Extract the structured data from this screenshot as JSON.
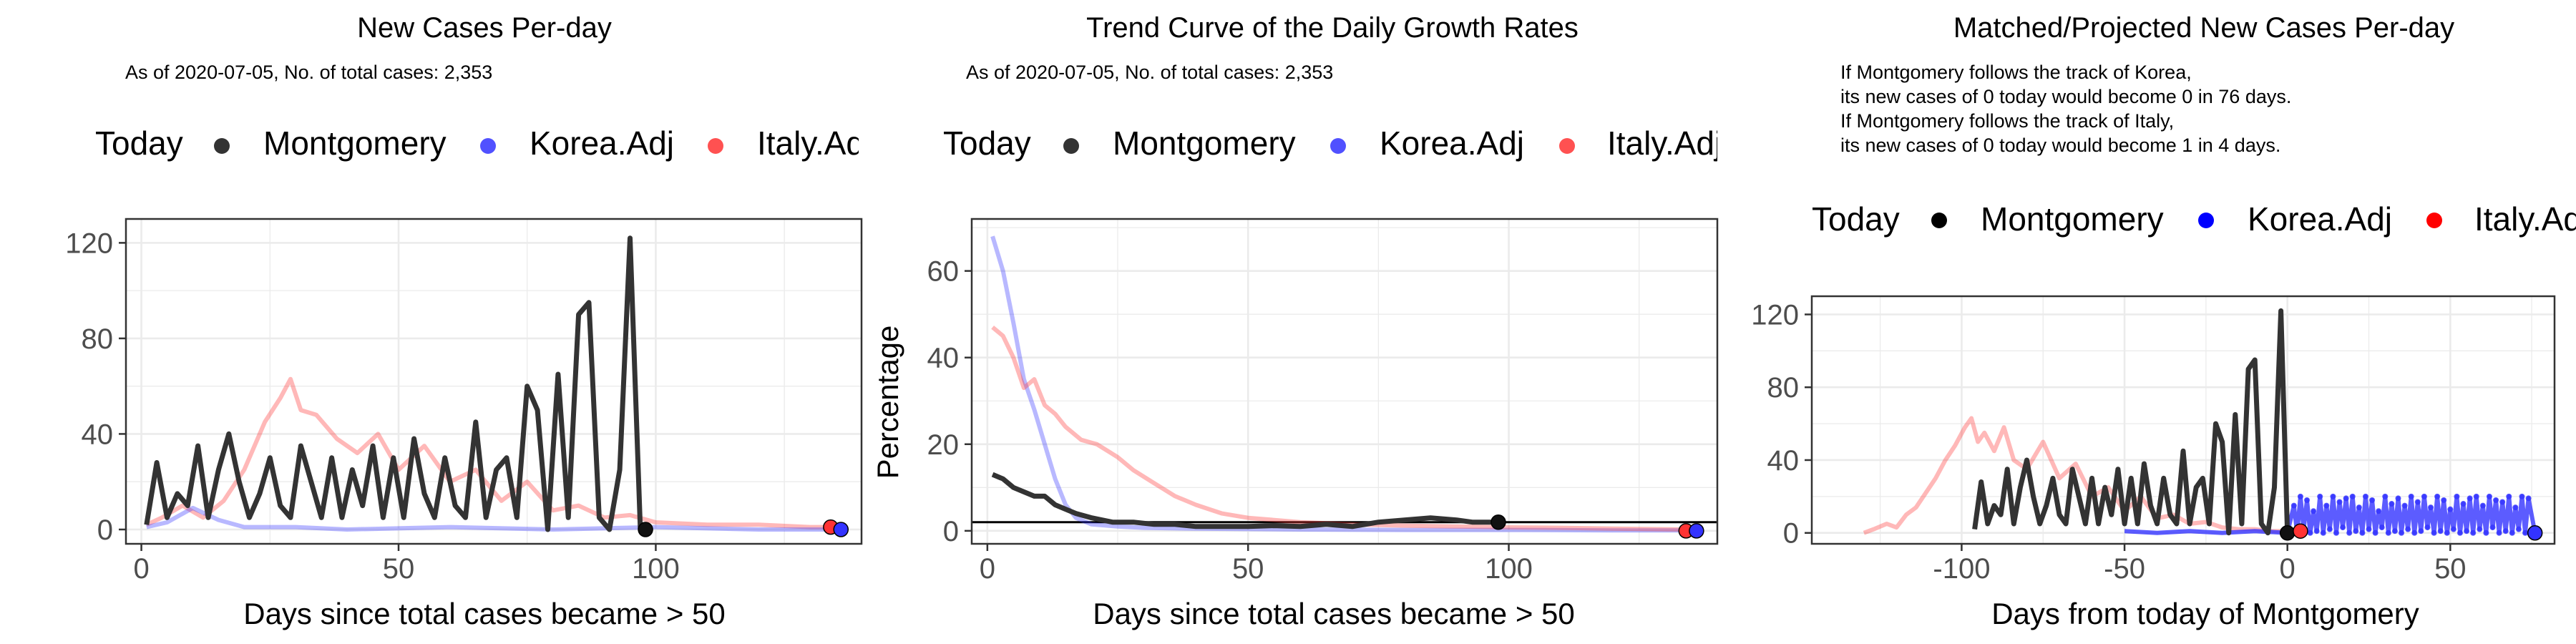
{
  "colors": {
    "montgomery": "#333333",
    "korea": "#3333ff",
    "italy": "#ff3333",
    "grid": "#ebebeb",
    "panel_border": "#333333",
    "axis_text": "#4d4d4d"
  },
  "legend": {
    "title": "Today",
    "items": [
      "Montgomery",
      "Korea.Adj",
      "Italy.Adj"
    ]
  },
  "panels": [
    {
      "title": "New Cases Per-day",
      "subtitle": "As of 2020-07-05, No. of total cases: 2,353",
      "notes": [],
      "xlabel": "Days since total cases became > 50",
      "ylabel": ""
    },
    {
      "title": "Trend Curve of the Daily Growth Rates",
      "subtitle": "As of 2020-07-05, No. of total cases: 2,353",
      "notes": [],
      "xlabel": "Days since total cases became > 50",
      "ylabel": "Percentage"
    },
    {
      "title": "Matched/Projected New Cases Per-day",
      "subtitle": "",
      "notes": [
        "If Montgomery follows the track of Korea,",
        "its new cases of 0 today would become 0 in 76 days.",
        "If Montgomery follows the track of Italy,",
        "its new cases of 0 today would become 1 in 4 days."
      ],
      "xlabel": "Days from today of Montgomery",
      "ylabel": ""
    }
  ],
  "chart_data": [
    {
      "type": "line",
      "title": "New Cases Per-day",
      "xlabel": "Days since total cases became > 50",
      "ylabel": "",
      "xlim": [
        -3,
        140
      ],
      "ylim": [
        -6,
        130
      ],
      "xticks": [
        0,
        50,
        100
      ],
      "yticks": [
        0,
        40,
        80,
        120
      ],
      "grid": true,
      "series": [
        {
          "name": "Italy.Adj",
          "x": [
            1,
            4,
            8,
            12,
            16,
            20,
            24,
            27,
            29,
            31,
            34,
            38,
            42,
            46,
            50,
            55,
            60,
            65,
            70,
            75,
            80,
            85,
            90,
            95,
            100,
            110,
            120,
            130,
            134
          ],
          "y": [
            2,
            5,
            10,
            5,
            12,
            25,
            45,
            55,
            63,
            50,
            48,
            38,
            32,
            40,
            25,
            35,
            20,
            25,
            12,
            20,
            8,
            10,
            5,
            6,
            3,
            2,
            2,
            1,
            1
          ]
        },
        {
          "name": "Korea.Adj",
          "x": [
            1,
            5,
            10,
            15,
            20,
            30,
            40,
            60,
            80,
            100,
            120,
            136
          ],
          "y": [
            1,
            3,
            9,
            4,
            1,
            1,
            0,
            1,
            0,
            1,
            0,
            0
          ]
        },
        {
          "name": "Montgomery",
          "x": [
            1,
            3,
            5,
            7,
            9,
            11,
            13,
            15,
            17,
            19,
            21,
            23,
            25,
            27,
            29,
            31,
            33,
            35,
            37,
            39,
            41,
            43,
            45,
            47,
            49,
            51,
            53,
            55,
            57,
            59,
            61,
            63,
            65,
            67,
            69,
            71,
            73,
            75,
            77,
            79,
            81,
            83,
            85,
            87,
            89,
            91,
            93,
            95,
            97
          ],
          "y": [
            2,
            28,
            5,
            15,
            10,
            35,
            5,
            25,
            40,
            20,
            5,
            15,
            30,
            10,
            5,
            35,
            20,
            5,
            30,
            5,
            25,
            10,
            35,
            5,
            30,
            5,
            38,
            15,
            5,
            30,
            10,
            5,
            45,
            5,
            25,
            30,
            5,
            60,
            50,
            0,
            65,
            5,
            90,
            95,
            5,
            0,
            25,
            122,
            0
          ]
        }
      ],
      "today_markers": [
        {
          "name": "Montgomery",
          "x": 98,
          "y": 0
        },
        {
          "name": "Italy.Adj",
          "x": 134,
          "y": 1
        },
        {
          "name": "Korea.Adj",
          "x": 136,
          "y": 0
        }
      ]
    },
    {
      "type": "line",
      "title": "Trend Curve of the Daily Growth Rates",
      "xlabel": "Days since total cases became > 50",
      "ylabel": "Percentage",
      "xlim": [
        -3,
        140
      ],
      "ylim": [
        -3,
        72
      ],
      "xticks": [
        0,
        50,
        100
      ],
      "yticks": [
        0,
        20,
        40,
        60
      ],
      "grid": true,
      "reference_line_y": 2,
      "series": [
        {
          "name": "Korea.Adj",
          "x": [
            1,
            3,
            5,
            7,
            9,
            11,
            13,
            15,
            17,
            20,
            25,
            30,
            40,
            60,
            80,
            100,
            120,
            136
          ],
          "y": [
            68,
            60,
            48,
            35,
            28,
            20,
            12,
            6,
            3,
            1.5,
            1,
            0.7,
            0.5,
            0.3,
            0.2,
            0.2,
            0.1,
            0.1
          ]
        },
        {
          "name": "Italy.Adj",
          "x": [
            1,
            3,
            5,
            7,
            9,
            11,
            13,
            15,
            18,
            21,
            25,
            28,
            32,
            36,
            40,
            45,
            50,
            55,
            60,
            70,
            80,
            90,
            100,
            110,
            120,
            134
          ],
          "y": [
            47,
            45,
            40,
            33,
            35,
            29,
            27,
            24,
            21,
            20,
            17,
            14,
            11,
            8,
            6,
            4,
            3,
            2.5,
            2,
            1.5,
            1.2,
            1,
            0.8,
            0.7,
            0.5,
            0.3
          ]
        },
        {
          "name": "Montgomery",
          "x": [
            1,
            3,
            5,
            7,
            9,
            11,
            13,
            15,
            17,
            20,
            24,
            28,
            32,
            36,
            40,
            45,
            50,
            55,
            60,
            65,
            70,
            75,
            80,
            85,
            90,
            93,
            97
          ],
          "y": [
            13,
            12,
            10,
            9,
            8,
            8,
            6,
            5,
            4,
            3,
            2,
            2,
            1.5,
            1.5,
            1,
            1,
            1,
            1.2,
            1,
            1.5,
            1,
            2,
            2.5,
            3,
            2.5,
            2,
            2
          ]
        }
      ],
      "today_markers": [
        {
          "name": "Montgomery",
          "x": 98,
          "y": 2
        },
        {
          "name": "Italy.Adj",
          "x": 134,
          "y": 0
        },
        {
          "name": "Korea.Adj",
          "x": 136,
          "y": 0
        }
      ]
    },
    {
      "type": "line",
      "title": "Matched/Projected New Cases Per-day",
      "xlabel": "Days from today of Montgomery",
      "ylabel": "",
      "xlim": [
        -146,
        82
      ],
      "ylim": [
        -6,
        130
      ],
      "xticks": [
        -100,
        -50,
        0,
        50
      ],
      "yticks": [
        0,
        40,
        80,
        120
      ],
      "grid": true,
      "series": [
        {
          "name": "Italy.Adj",
          "x": [
            -130,
            -127,
            -123,
            -120,
            -117,
            -114,
            -111,
            -108,
            -105,
            -102,
            -99,
            -97,
            -95,
            -93,
            -90,
            -87,
            -84,
            -80,
            -75,
            -70,
            -65,
            -60,
            -55,
            -50,
            -45,
            -40,
            -35,
            -30,
            -25,
            -20,
            -15,
            -10,
            -5,
            0,
            4
          ],
          "y": [
            0,
            2,
            5,
            3,
            10,
            14,
            22,
            30,
            40,
            48,
            58,
            63,
            50,
            55,
            45,
            58,
            40,
            35,
            50,
            30,
            38,
            20,
            25,
            12,
            20,
            8,
            10,
            5,
            6,
            3,
            2,
            2,
            1,
            1,
            1
          ]
        },
        {
          "name": "Korea.Adj",
          "x": [
            -50,
            -40,
            -30,
            -20,
            -10,
            0,
            2,
            3,
            4,
            5,
            6,
            7,
            8,
            9,
            10,
            11,
            12,
            13,
            14,
            15,
            16,
            17,
            18,
            19,
            20,
            21,
            22,
            23,
            24,
            25,
            26,
            27,
            28,
            29,
            30,
            31,
            32,
            33,
            34,
            35,
            36,
            37,
            38,
            39,
            40,
            41,
            42,
            43,
            44,
            45,
            46,
            47,
            48,
            49,
            50,
            51,
            52,
            53,
            54,
            55,
            56,
            57,
            58,
            59,
            60,
            61,
            62,
            63,
            64,
            65,
            66,
            67,
            68,
            69,
            70,
            71,
            72,
            73,
            74,
            76
          ],
          "y": [
            1,
            0,
            1,
            0,
            1,
            0,
            15,
            0,
            20,
            2,
            18,
            0,
            12,
            1,
            20,
            0,
            15,
            2,
            20,
            0,
            17,
            3,
            19,
            0,
            20,
            1,
            14,
            0,
            20,
            2,
            18,
            0,
            12,
            3,
            20,
            0,
            16,
            1,
            19,
            0,
            15,
            2,
            20,
            0,
            17,
            1,
            20,
            3,
            14,
            0,
            20,
            1,
            18,
            0,
            13,
            2,
            20,
            0,
            16,
            1,
            19,
            0,
            20,
            2,
            15,
            0,
            20,
            3,
            18,
            0,
            17,
            1,
            20,
            0,
            14,
            2,
            20,
            0,
            19,
            0
          ]
        },
        {
          "name": "Montgomery",
          "x": [
            -96,
            -94,
            -92,
            -90,
            -88,
            -86,
            -84,
            -82,
            -80,
            -78,
            -76,
            -74,
            -72,
            -70,
            -68,
            -66,
            -64,
            -62,
            -60,
            -58,
            -56,
            -54,
            -52,
            -50,
            -48,
            -46,
            -44,
            -42,
            -40,
            -38,
            -36,
            -34,
            -32,
            -30,
            -28,
            -26,
            -24,
            -22,
            -20,
            -18,
            -16,
            -14,
            -12,
            -10,
            -8,
            -6,
            -4,
            -2,
            0
          ],
          "y": [
            2,
            28,
            5,
            15,
            10,
            35,
            5,
            25,
            40,
            20,
            5,
            15,
            30,
            10,
            5,
            35,
            20,
            5,
            30,
            5,
            25,
            10,
            35,
            5,
            30,
            5,
            38,
            15,
            5,
            30,
            10,
            5,
            45,
            5,
            25,
            30,
            5,
            60,
            50,
            0,
            65,
            5,
            90,
            95,
            5,
            0,
            25,
            122,
            0
          ]
        }
      ],
      "today_markers": [
        {
          "name": "Montgomery",
          "x": 0,
          "y": 0
        },
        {
          "name": "Italy.Adj",
          "x": 4,
          "y": 1
        },
        {
          "name": "Korea.Adj",
          "x": 76,
          "y": 0
        }
      ]
    }
  ]
}
